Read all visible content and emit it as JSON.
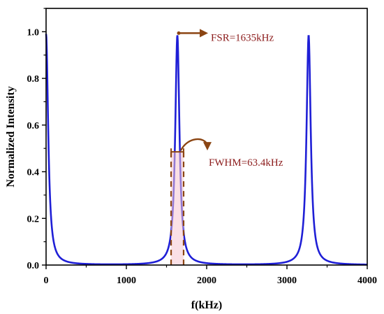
{
  "chart_data": {
    "type": "line",
    "title": "",
    "xlabel": "f(kHz)",
    "ylabel": "Normalized Intensity",
    "xlim": [
      0,
      4000
    ],
    "ylim": [
      0,
      1.1
    ],
    "x_ticks": [
      0,
      1000,
      2000,
      3000,
      4000
    ],
    "y_ticks": [
      0.0,
      0.2,
      0.4,
      0.6,
      0.8,
      1.0
    ],
    "x_tick_labels": [
      "0",
      "1000",
      "2000",
      "3000",
      "4000"
    ],
    "y_tick_labels": [
      "0.0",
      "0.2",
      "0.4",
      "0.6",
      "0.8",
      "1.0"
    ],
    "grid": false,
    "legend": "none",
    "series": [
      {
        "color": "#1f1fd6",
        "peak_frequencies_kHz": [
          0,
          1635,
          3270
        ],
        "peak_values": [
          0.99,
          0.985,
          0.985
        ],
        "fwhm_kHz": 63.4,
        "baseline_min": 0.015
      }
    ],
    "annotations": [
      {
        "text": "FSR=1635kHz",
        "color": "#8B1A1A"
      },
      {
        "text": "FWHM=63.4kHz",
        "color": "#8B1A1A"
      }
    ]
  }
}
